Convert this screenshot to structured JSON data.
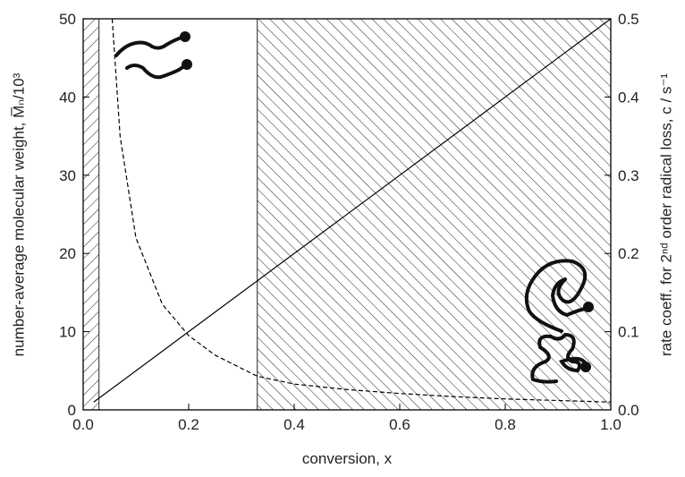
{
  "chart_data": {
    "type": "line",
    "xlabel": "conversion, x",
    "ylabel": "number-average molecular weight, M̅ₙ/10³",
    "y2label": "rate coeff. for 2ⁿᵈ order radical loss, c / s⁻¹",
    "xlim": [
      0,
      1
    ],
    "xticks": [
      {
        "value": 0,
        "label": "0.0"
      },
      0.2,
      0.4,
      0.6,
      0.8,
      {
        "value": 1,
        "label": "1.0"
      }
    ],
    "ylim": [
      0,
      50
    ],
    "yticks": [
      0,
      10,
      20,
      30,
      40,
      50
    ],
    "y2lim": [
      0,
      0.5
    ],
    "y2ticks": [
      {
        "value": 0,
        "label": "0.0"
      },
      0.1,
      0.2,
      0.3,
      0.4,
      0.5
    ],
    "shaded_regions": [
      {
        "x": [
          0,
          0.03
        ]
      },
      {
        "x": [
          0.33,
          1
        ]
      }
    ],
    "series": [
      {
        "style": "dashed",
        "color": "#000000",
        "x": [
          0.055,
          0.07,
          0.1,
          0.15,
          0.2,
          0.25,
          0.33,
          0.4,
          0.5,
          0.6,
          0.7,
          0.8,
          0.9,
          1.0
        ],
        "values": [
          50,
          35,
          22,
          13.5,
          9.5,
          7,
          4.3,
          3.3,
          2.6,
          2.1,
          1.7,
          1.4,
          1.2,
          1.0
        ]
      },
      {
        "style": "solid",
        "color": "#000000",
        "axis": "y2",
        "x": [
          0.02,
          1.0
        ],
        "values": [
          0.01,
          0.5
        ]
      }
    ]
  }
}
